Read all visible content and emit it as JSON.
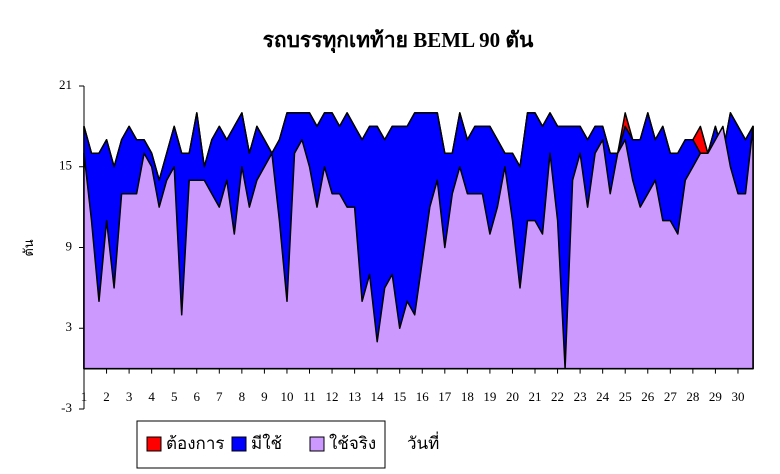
{
  "chart_data": {
    "type": "area",
    "title": "รถบรรทุกเทท้าย BEML 90 ตัน",
    "y_label": "ตัน",
    "x_label": "วันที่",
    "categories": [
      "1",
      null,
      null,
      "2",
      null,
      null,
      "3",
      null,
      null,
      "4",
      null,
      null,
      "5",
      null,
      null,
      "6",
      null,
      null,
      "7",
      null,
      null,
      "8",
      null,
      null,
      "9",
      null,
      null,
      "10",
      null,
      null,
      "11",
      null,
      null,
      "12",
      null,
      null,
      "13",
      null,
      null,
      "14",
      null,
      null,
      "15",
      null,
      null,
      "16",
      null,
      null,
      "17",
      null,
      null,
      "18",
      null,
      null,
      "19",
      null,
      null,
      "20",
      null,
      null,
      "21",
      null,
      null,
      "22",
      null,
      null,
      "23",
      null,
      null,
      "24",
      null,
      null,
      "25",
      null,
      null,
      "26",
      null,
      null,
      "27",
      null,
      null,
      "28",
      null,
      null,
      "29",
      null,
      null,
      "30",
      null,
      null
    ],
    "series": [
      {
        "name": "ต้องการ",
        "color": "#ff0000",
        "values": [
          18,
          16,
          16,
          17,
          15,
          17,
          18,
          17,
          17,
          16,
          14,
          16,
          18,
          16,
          16,
          19,
          15,
          17,
          18,
          17,
          18,
          19,
          16,
          18,
          17,
          16,
          17,
          19,
          19,
          19,
          19,
          18,
          19,
          19,
          18,
          19,
          18,
          17,
          18,
          18,
          17,
          18,
          18,
          18,
          19,
          19,
          19,
          19,
          16,
          16,
          19,
          17,
          18,
          18,
          18,
          17,
          16,
          16,
          15,
          19,
          19,
          18,
          19,
          18,
          18,
          18,
          18,
          17,
          18,
          18,
          16,
          16,
          19,
          17,
          17,
          19,
          17,
          18,
          16,
          16,
          17,
          17,
          18,
          16,
          18,
          16,
          19,
          18,
          17,
          18
        ]
      },
      {
        "name": "มีใช้",
        "color": "#0000ff",
        "values": [
          18,
          16,
          16,
          17,
          15,
          17,
          18,
          17,
          17,
          16,
          14,
          16,
          18,
          16,
          16,
          19,
          15,
          17,
          18,
          17,
          18,
          19,
          16,
          18,
          17,
          16,
          17,
          19,
          19,
          19,
          19,
          18,
          19,
          19,
          18,
          19,
          18,
          17,
          18,
          18,
          17,
          18,
          18,
          18,
          19,
          19,
          19,
          19,
          16,
          16,
          19,
          17,
          18,
          18,
          18,
          17,
          16,
          16,
          15,
          19,
          19,
          18,
          19,
          18,
          18,
          18,
          18,
          17,
          18,
          18,
          16,
          16,
          18,
          17,
          17,
          19,
          17,
          18,
          16,
          16,
          17,
          17,
          16,
          16,
          18,
          16,
          19,
          18,
          17,
          18
        ]
      },
      {
        "name": "ใช้จริง",
        "color": "#cc99ff",
        "values": [
          16,
          11,
          5,
          11,
          6,
          13,
          13,
          13,
          16,
          15,
          12,
          14,
          15,
          4,
          14,
          14,
          14,
          13,
          12,
          14,
          10,
          15,
          12,
          14,
          15,
          16,
          11,
          5,
          16,
          17,
          15,
          12,
          15,
          13,
          13,
          12,
          12,
          5,
          7,
          2,
          6,
          7,
          3,
          5,
          4,
          8,
          12,
          14,
          9,
          13,
          15,
          13,
          13,
          13,
          10,
          12,
          15,
          11,
          6,
          11,
          11,
          10,
          16,
          11,
          0,
          14,
          16,
          12,
          16,
          17,
          13,
          16,
          17,
          14,
          12,
          13,
          14,
          11,
          11,
          10,
          14,
          15,
          16,
          16,
          17,
          18,
          15,
          13,
          13,
          18
        ]
      }
    ],
    "ylim": [
      -3,
      21
    ],
    "yticks": [
      -3,
      3,
      9,
      15,
      21
    ]
  }
}
